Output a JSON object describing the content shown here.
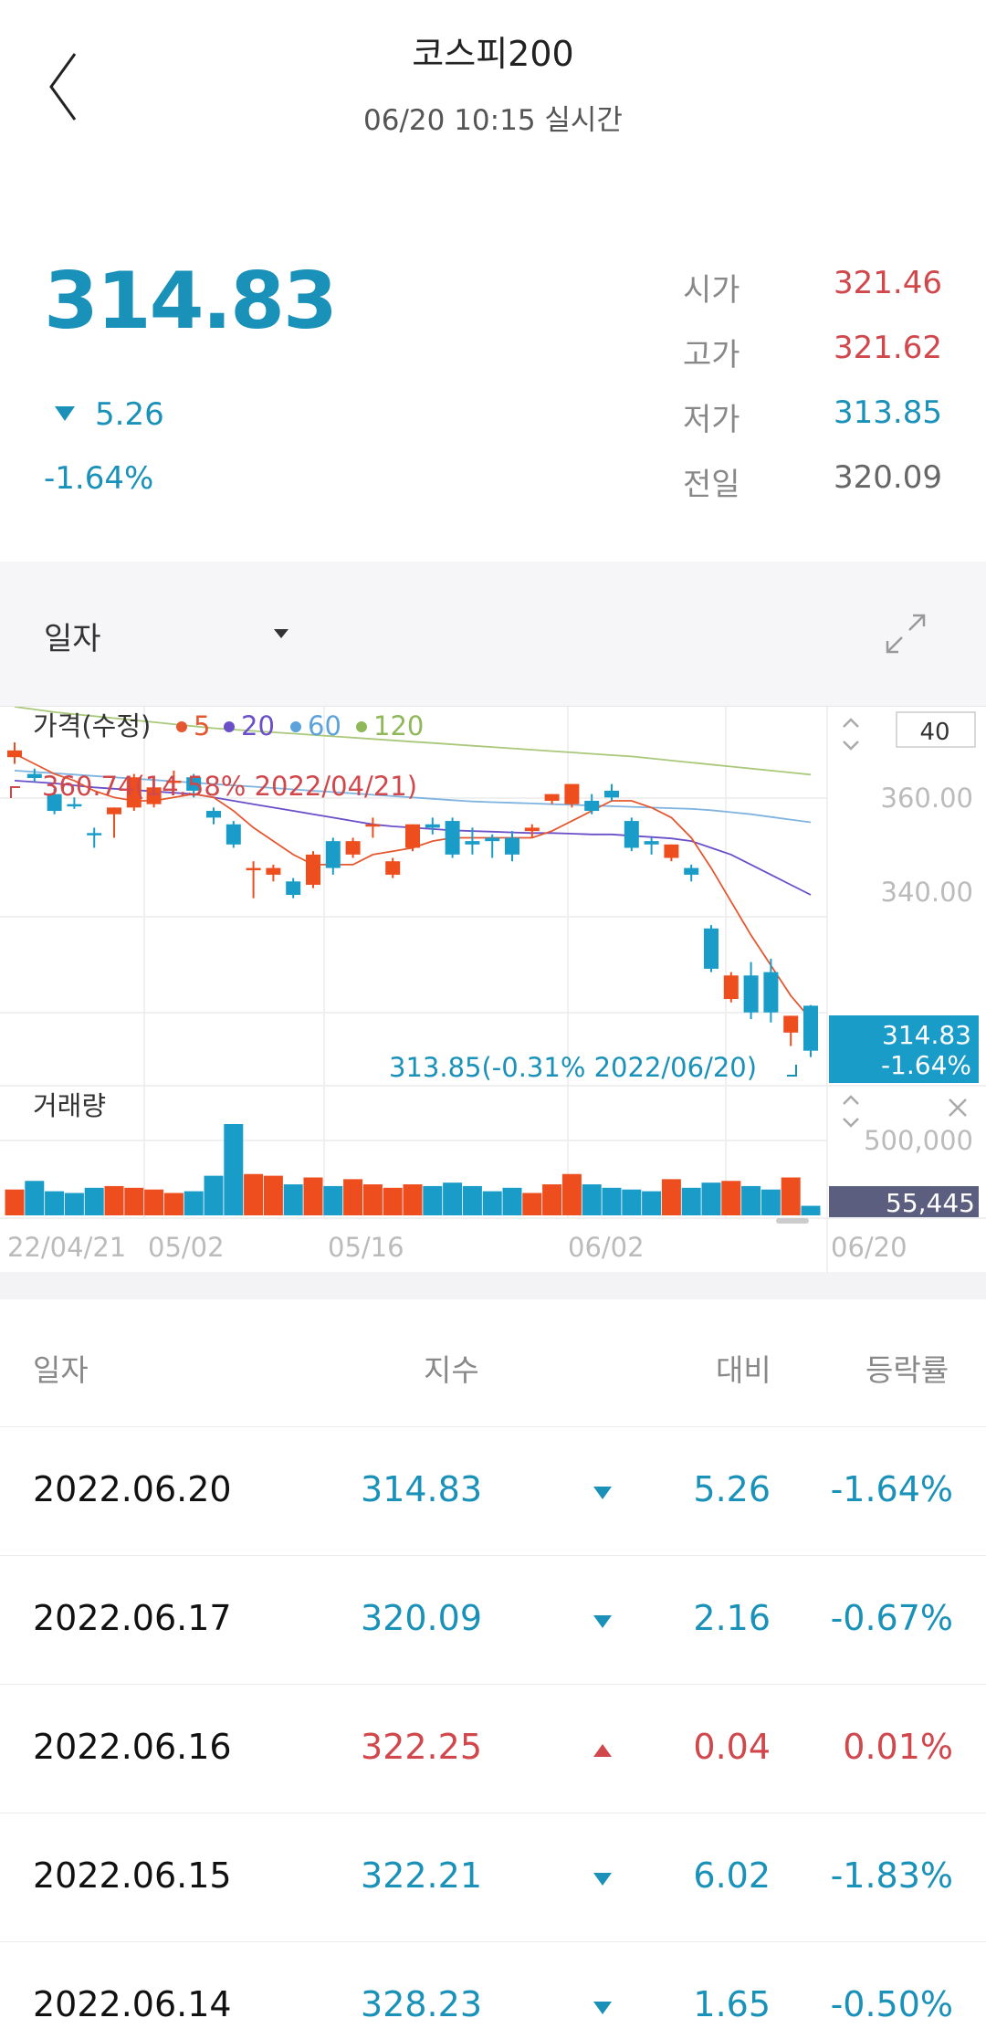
{
  "header": {
    "title": "코스피200",
    "subtitle": "06/20 10:15 실시간"
  },
  "summary": {
    "price": "314.83",
    "change": "5.26",
    "change_rate": "-1.64%",
    "stats": [
      {
        "label": "시가",
        "value": "321.46",
        "color": "#d0474c"
      },
      {
        "label": "고가",
        "value": "321.62",
        "color": "#d0474c"
      },
      {
        "label": "저가",
        "value": "313.85",
        "color": "#1a91b8"
      },
      {
        "label": "전일",
        "value": "320.09",
        "color": "#666666"
      }
    ]
  },
  "chart_toolbar": {
    "period": "일자"
  },
  "chart_data": {
    "type": "candlestick",
    "legend_title": "가격(수정)",
    "ma_legend": [
      {
        "label": "5",
        "color": "#e5582f"
      },
      {
        "label": "20",
        "color": "#6a4fc9"
      },
      {
        "label": "60",
        "color": "#5ea2dc"
      },
      {
        "label": "120",
        "color": "#8fb85a"
      }
    ],
    "count_box": "40",
    "y_ticks": [
      "360.00",
      "340.00"
    ],
    "ylim": [
      310,
      366
    ],
    "max_annotation": "360.74(14.58% 2022/04/21)",
    "min_annotation": "313.85(-0.31% 2022/06/20)",
    "last_price_tag": "314.83",
    "last_rate_tag": "-1.64%",
    "volume_label": "거래량",
    "volume_tick": "500,000",
    "volume_tag": "55,445",
    "x_labels": [
      "22/04/21",
      "05/02",
      "05/16",
      "06/02",
      "06/20"
    ],
    "up_color": "#ee4d1e",
    "down_color": "#1a9cc9",
    "candles": [
      {
        "o": 358.5,
        "h": 360.7,
        "c": 359.5,
        "l": 357.5,
        "v": 150000
      },
      {
        "o": 356.0,
        "h": 356.8,
        "c": 355.4,
        "l": 354.8,
        "v": 200000
      },
      {
        "o": 353.0,
        "h": 353.8,
        "c": 350.5,
        "l": 350.0,
        "v": 140000
      },
      {
        "o": 351.5,
        "h": 352.5,
        "c": 351.2,
        "l": 350.8,
        "v": 130000
      },
      {
        "o": 347.2,
        "h": 348.0,
        "c": 347.0,
        "l": 345.0,
        "v": 160000
      },
      {
        "o": 350.0,
        "h": 351.0,
        "c": 351.0,
        "l": 346.5,
        "v": 170000
      },
      {
        "o": 351.0,
        "h": 356.0,
        "c": 355.5,
        "l": 350.5,
        "v": 160000
      },
      {
        "o": 351.5,
        "h": 355.5,
        "c": 354.0,
        "l": 351.0,
        "v": 150000
      },
      {
        "o": 355.0,
        "h": 356.5,
        "c": 355.0,
        "l": 353.5,
        "v": 130000
      },
      {
        "o": 355.5,
        "h": 356.0,
        "c": 353.5,
        "l": 352.5,
        "v": 140000
      },
      {
        "o": 350.5,
        "h": 351.0,
        "c": 349.5,
        "l": 348.5,
        "v": 230000
      },
      {
        "o": 348.5,
        "h": 349.0,
        "c": 345.5,
        "l": 345.0,
        "v": 530000
      },
      {
        "o": 342.0,
        "h": 343.0,
        "c": 342.0,
        "l": 337.5,
        "v": 240000
      },
      {
        "o": 341.0,
        "h": 342.5,
        "c": 342.0,
        "l": 340.0,
        "v": 230000
      },
      {
        "o": 340.0,
        "h": 340.5,
        "c": 338.0,
        "l": 337.5,
        "v": 180000
      },
      {
        "o": 339.5,
        "h": 344.5,
        "c": 344.0,
        "l": 339.0,
        "v": 220000
      },
      {
        "o": 346.0,
        "h": 346.5,
        "c": 342.0,
        "l": 341.0,
        "v": 170000
      },
      {
        "o": 344.0,
        "h": 346.5,
        "c": 346.0,
        "l": 343.5,
        "v": 210000
      },
      {
        "o": 348.5,
        "h": 349.5,
        "c": 348.5,
        "l": 346.5,
        "v": 180000
      },
      {
        "o": 341.0,
        "h": 343.5,
        "c": 343.0,
        "l": 340.5,
        "v": 160000
      },
      {
        "o": 345.0,
        "h": 348.5,
        "c": 348.5,
        "l": 344.5,
        "v": 180000
      },
      {
        "o": 348.5,
        "h": 349.5,
        "c": 348.0,
        "l": 347.0,
        "v": 170000
      },
      {
        "o": 349.0,
        "h": 349.5,
        "c": 344.0,
        "l": 343.5,
        "v": 190000
      },
      {
        "o": 346.0,
        "h": 348.0,
        "c": 345.5,
        "l": 344.0,
        "v": 170000
      },
      {
        "o": 346.5,
        "h": 347.0,
        "c": 346.0,
        "l": 343.5,
        "v": 140000
      },
      {
        "o": 346.5,
        "h": 347.5,
        "c": 344.0,
        "l": 343.0,
        "v": 160000
      },
      {
        "o": 347.5,
        "h": 348.5,
        "c": 348.0,
        "l": 346.5,
        "v": 130000
      },
      {
        "o": 352.0,
        "h": 353.0,
        "c": 353.0,
        "l": 351.5,
        "v": 180000
      },
      {
        "o": 351.5,
        "h": 354.5,
        "c": 354.5,
        "l": 351.0,
        "v": 240000
      },
      {
        "o": 352.0,
        "h": 353.0,
        "c": 350.5,
        "l": 350.0,
        "v": 180000
      },
      {
        "o": 353.5,
        "h": 354.5,
        "c": 352.5,
        "l": 352.0,
        "v": 160000
      },
      {
        "o": 349.0,
        "h": 349.5,
        "c": 345.0,
        "l": 344.5,
        "v": 150000
      },
      {
        "o": 346.0,
        "h": 346.5,
        "c": 345.5,
        "l": 344.0,
        "v": 140000
      },
      {
        "o": 343.5,
        "h": 345.5,
        "c": 345.5,
        "l": 343.0,
        "v": 210000
      },
      {
        "o": 342.0,
        "h": 342.5,
        "c": 341.0,
        "l": 340.0,
        "v": 160000
      },
      {
        "o": 333.0,
        "h": 333.5,
        "c": 327.0,
        "l": 326.5,
        "v": 190000
      },
      {
        "o": 322.5,
        "h": 326.5,
        "c": 326.0,
        "l": 322.0,
        "v": 200000
      },
      {
        "o": 326.0,
        "h": 328.0,
        "c": 320.5,
        "l": 319.5,
        "v": 170000
      },
      {
        "o": 326.5,
        "h": 328.5,
        "c": 320.5,
        "l": 319.0,
        "v": 150000
      },
      {
        "o": 317.5,
        "h": 320.0,
        "c": 320.0,
        "l": 315.5,
        "v": 220000
      },
      {
        "o": 321.5,
        "h": 321.6,
        "c": 314.8,
        "l": 313.85,
        "v": 55445
      }
    ],
    "ma5": [
      359,
      357.5,
      356,
      355,
      353.5,
      352.5,
      352,
      352,
      352.5,
      353,
      352.5,
      350.5,
      348,
      346,
      344,
      342.5,
      342.5,
      342.5,
      344,
      344.5,
      345,
      346,
      346.5,
      346.5,
      346.5,
      346.5,
      346.5,
      347.5,
      349,
      350.5,
      352,
      352,
      351,
      349.5,
      346.5,
      342,
      337,
      332,
      327.5,
      323,
      319.5
    ],
    "ma20": [
      355,
      354.8,
      354.6,
      354.3,
      354,
      353.8,
      353.6,
      353.4,
      353.2,
      353,
      352.5,
      352,
      351.5,
      351,
      350.5,
      350,
      349.5,
      349,
      348.5,
      348.2,
      348,
      347.8,
      347.6,
      347.5,
      347.4,
      347.3,
      347.2,
      347.2,
      347.1,
      347,
      347,
      346.8,
      346.6,
      346.4,
      346,
      345,
      344,
      342.5,
      341,
      339.5,
      338
    ],
    "ma60": [
      356.5,
      356.3,
      356.1,
      355.9,
      355.7,
      355.5,
      355.3,
      355.1,
      354.9,
      354.7,
      354.5,
      354.3,
      354.1,
      353.9,
      353.7,
      353.5,
      353.3,
      353.1,
      352.9,
      352.7,
      352.5,
      352.3,
      352.1,
      351.9,
      351.8,
      351.7,
      351.6,
      351.5,
      351.4,
      351.3,
      351.2,
      351.1,
      351,
      350.9,
      350.8,
      350.6,
      350.3,
      350,
      349.6,
      349.2,
      348.8
    ],
    "ma120": [
      366,
      365.6,
      365.2,
      364.9,
      364.6,
      364.3,
      364,
      363.7,
      363.4,
      363.1,
      362.8,
      362.6,
      362.4,
      362.2,
      362,
      361.8,
      361.6,
      361.4,
      361.2,
      361,
      360.8,
      360.6,
      360.4,
      360.2,
      360,
      359.8,
      359.6,
      359.4,
      359.2,
      359,
      358.8,
      358.6,
      358.3,
      358,
      357.7,
      357.4,
      357.1,
      356.8,
      356.5,
      356.2,
      355.9
    ]
  },
  "table": {
    "headers": [
      "일자",
      "지수",
      "대비",
      "등락률"
    ],
    "rows": [
      {
        "date": "2022.06.20",
        "index": "314.83",
        "dir": "down",
        "diff": "5.26",
        "rate": "-1.64%"
      },
      {
        "date": "2022.06.17",
        "index": "320.09",
        "dir": "down",
        "diff": "2.16",
        "rate": "-0.67%"
      },
      {
        "date": "2022.06.16",
        "index": "322.25",
        "dir": "up",
        "diff": "0.04",
        "rate": "0.01%"
      },
      {
        "date": "2022.06.15",
        "index": "322.21",
        "dir": "down",
        "diff": "6.02",
        "rate": "-1.83%"
      },
      {
        "date": "2022.06.14",
        "index": "328.23",
        "dir": "down",
        "diff": "1.65",
        "rate": "-0.50%"
      }
    ]
  }
}
